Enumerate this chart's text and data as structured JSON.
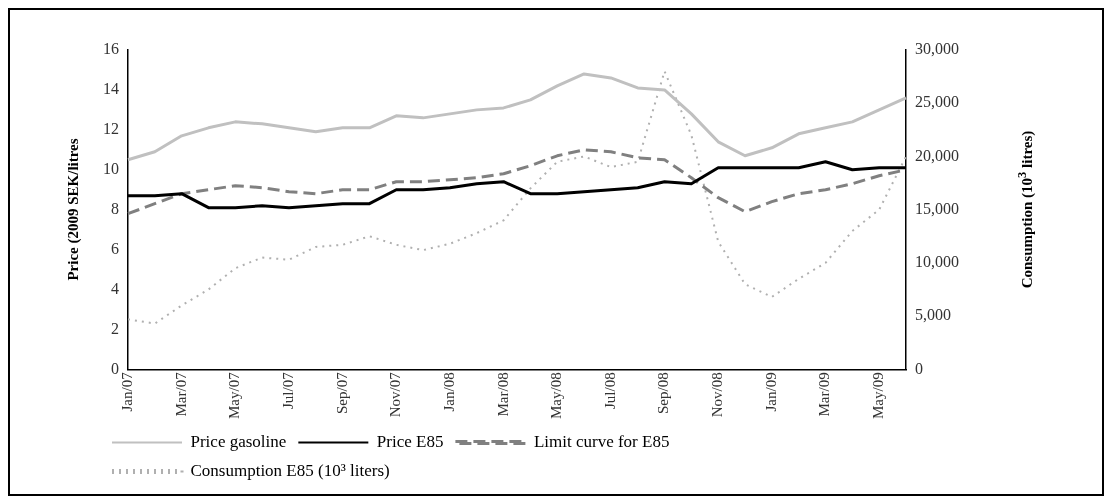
{
  "chart_data": {
    "type": "line",
    "categories": [
      "Jan/07",
      null,
      "Mar/07",
      null,
      "May/07",
      null,
      "Jul/07",
      null,
      "Sep/07",
      null,
      "Nov/07",
      null,
      "Jan/08",
      null,
      "Mar/08",
      null,
      "May/08",
      null,
      "Jul/08",
      null,
      "Sep/08",
      null,
      "Nov/08",
      null,
      "Jan/09",
      null,
      "Mar/09",
      null,
      "May/09",
      null
    ],
    "ylabel": "Price (2009 SEK/litres",
    "y2label": "Consumption (10$^{3}$ litres)",
    "ylim": [
      0,
      16
    ],
    "yticks": [
      0,
      2,
      4,
      6,
      8,
      10,
      12,
      14,
      16
    ],
    "y2lim": [
      0,
      30000
    ],
    "y2ticks": [
      {
        "value": 0,
        "label": "0"
      },
      {
        "value": 5000,
        "label": "5,000"
      },
      {
        "value": 10000,
        "label": "10,000"
      },
      {
        "value": 15000,
        "label": "15,000"
      },
      {
        "value": 20000,
        "label": "20,000"
      },
      {
        "value": 25000,
        "label": "25,000"
      },
      {
        "value": 30000,
        "label": "30,000"
      }
    ],
    "grid": false,
    "legend": "bottom",
    "marker": "none",
    "series": [
      {
        "name": "Price gasoline",
        "color": "#c0c0c0",
        "line_style": "solid",
        "values": [
          10.5,
          10.9,
          11.7,
          12.1,
          12.4,
          12.3,
          12.1,
          11.9,
          12.1,
          12.1,
          12.7,
          12.6,
          12.8,
          13.0,
          13.1,
          13.5,
          14.2,
          14.8,
          14.6,
          14.1,
          14.0,
          12.8,
          11.4,
          10.7,
          11.1,
          11.8,
          12.1,
          12.4,
          13.0,
          13.6
        ]
      },
      {
        "name": "Price E85",
        "color": "#000000",
        "line_style": "solid",
        "values": [
          8.7,
          8.7,
          8.8,
          8.1,
          8.1,
          8.2,
          8.1,
          8.2,
          8.3,
          8.3,
          9.0,
          9.0,
          9.1,
          9.3,
          9.4,
          8.8,
          8.8,
          8.9,
          9.0,
          9.1,
          9.4,
          9.3,
          10.1,
          10.1,
          10.1,
          10.1,
          10.4,
          10.0,
          10.1,
          10.1
        ]
      },
      {
        "name": "Limit curve for E85",
        "color": "#808080",
        "line_style": "dashed",
        "values": [
          7.8,
          8.3,
          8.8,
          9.0,
          9.2,
          9.1,
          8.9,
          8.8,
          9.0,
          9.0,
          9.4,
          9.4,
          9.5,
          9.6,
          9.8,
          10.2,
          10.7,
          11.0,
          10.9,
          10.6,
          10.5,
          9.6,
          8.6,
          7.9,
          8.4,
          8.8,
          9.0,
          9.3,
          9.7,
          10.0
        ]
      },
      {
        "name": "Consumption E85 (10³ liters)",
        "color": "#b0b0b0",
        "line_style": "dotted",
        "axis": "y2",
        "values": [
          4700,
          4300,
          6000,
          7500,
          9500,
          10500,
          10300,
          11500,
          11700,
          12500,
          11700,
          11200,
          11800,
          12800,
          14000,
          17000,
          19500,
          20000,
          19000,
          19500,
          28000,
          22000,
          12000,
          8000,
          6800,
          8500,
          10000,
          13000,
          15000,
          20000
        ]
      }
    ]
  }
}
